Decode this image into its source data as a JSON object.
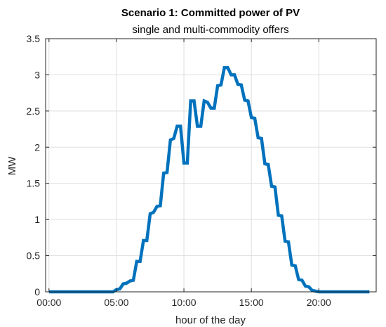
{
  "chart_data": {
    "type": "line",
    "title": "Scenario 1: Committed power of PV",
    "subtitle": "single and multi-commodity offers",
    "xlabel": "hour of the day",
    "ylabel": "MW",
    "xlim": [
      -0.25,
      24.25
    ],
    "ylim": [
      0,
      3.5
    ],
    "x_ticks": [
      0,
      5,
      10,
      15,
      20
    ],
    "x_tick_labels": [
      "00:00",
      "05:00",
      "10:00",
      "15:00",
      "20:00"
    ],
    "y_ticks": [
      0,
      0.5,
      1,
      1.5,
      2,
      2.5,
      3,
      3.5
    ],
    "y_tick_labels": [
      "0",
      "0.5",
      "1",
      "1.5",
      "2",
      "2.5",
      "3",
      "3.5"
    ],
    "grid": true,
    "series": [
      {
        "color": "#0072BD",
        "points": [
          [
            0,
            0
          ],
          [
            4.75,
            0
          ],
          [
            5.0,
            0.03
          ],
          [
            5.25,
            0.04
          ],
          [
            5.5,
            0.11
          ],
          [
            5.75,
            0.12
          ],
          [
            6.0,
            0.15
          ],
          [
            6.25,
            0.16
          ],
          [
            6.5,
            0.42
          ],
          [
            6.75,
            0.42
          ],
          [
            7.0,
            0.71
          ],
          [
            7.25,
            0.71
          ],
          [
            7.5,
            1.08
          ],
          [
            7.75,
            1.1
          ],
          [
            8.0,
            1.18
          ],
          [
            8.25,
            1.19
          ],
          [
            8.5,
            1.64
          ],
          [
            8.75,
            1.65
          ],
          [
            9.0,
            2.1
          ],
          [
            9.25,
            2.12
          ],
          [
            9.5,
            2.29
          ],
          [
            9.75,
            2.29
          ],
          [
            10.0,
            1.78
          ],
          [
            10.25,
            1.78
          ],
          [
            10.5,
            2.64
          ],
          [
            10.75,
            2.64
          ],
          [
            11.0,
            2.29
          ],
          [
            11.25,
            2.29
          ],
          [
            11.5,
            2.64
          ],
          [
            11.75,
            2.62
          ],
          [
            12.0,
            2.54
          ],
          [
            12.25,
            2.54
          ],
          [
            12.5,
            2.85
          ],
          [
            12.75,
            2.86
          ],
          [
            13.0,
            3.1
          ],
          [
            13.25,
            3.1
          ],
          [
            13.5,
            3.0
          ],
          [
            13.75,
            3.0
          ],
          [
            14.0,
            2.87
          ],
          [
            14.25,
            2.86
          ],
          [
            14.5,
            2.65
          ],
          [
            14.75,
            2.64
          ],
          [
            15.0,
            2.41
          ],
          [
            15.25,
            2.4
          ],
          [
            15.5,
            2.13
          ],
          [
            15.75,
            2.12
          ],
          [
            16.0,
            1.77
          ],
          [
            16.25,
            1.76
          ],
          [
            16.5,
            1.46
          ],
          [
            16.75,
            1.45
          ],
          [
            17.0,
            1.06
          ],
          [
            17.25,
            1.05
          ],
          [
            17.5,
            0.7
          ],
          [
            17.75,
            0.69
          ],
          [
            18.0,
            0.37
          ],
          [
            18.25,
            0.36
          ],
          [
            18.5,
            0.17
          ],
          [
            18.75,
            0.16
          ],
          [
            19.0,
            0.08
          ],
          [
            19.25,
            0.07
          ],
          [
            19.5,
            0.02
          ],
          [
            19.75,
            0.01
          ],
          [
            20.0,
            0
          ],
          [
            23.75,
            0
          ]
        ]
      }
    ]
  }
}
